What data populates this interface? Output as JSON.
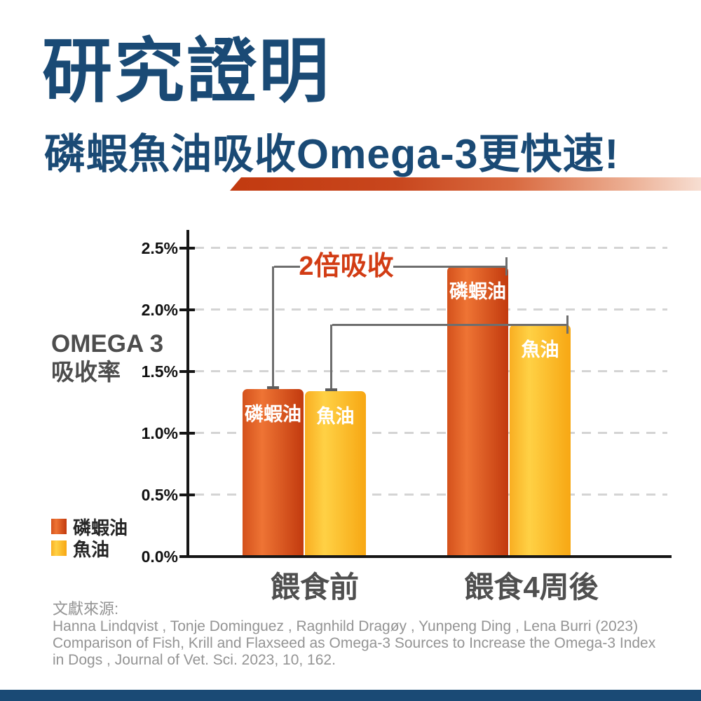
{
  "header": {
    "title": "研究證明",
    "subtitle": "磷蝦魚油吸收Omega-3更快速!"
  },
  "chart_data": {
    "type": "bar",
    "title": "",
    "ylabel_lines": [
      "OMEGA 3",
      "吸收率"
    ],
    "ylabel": "OMEGA 3 吸收率",
    "unit": "%",
    "ylim": [
      0,
      2.5
    ],
    "yticks": [
      0,
      0.5,
      1.0,
      1.5,
      2.0,
      2.5
    ],
    "ytick_labels": [
      "0.0%",
      "0.5%",
      "1.0%",
      "1.5%",
      "2.0%",
      "2.5%"
    ],
    "categories": [
      "餵食前",
      "餵食4周後"
    ],
    "series": [
      {
        "name": "磷蝦油",
        "values": [
          1.36,
          2.35
        ],
        "gradient": [
          "#d4511c",
          "#ee7434",
          "#c23a0e"
        ]
      },
      {
        "name": "魚油",
        "values": [
          1.34,
          1.88
        ],
        "gradient": [
          "#f9ae22",
          "#ffd145",
          "#f7a713"
        ]
      }
    ],
    "annotation": {
      "text": "2倍吸收",
      "color": "#d23c14"
    },
    "grid": "horizontal-dashed",
    "legend_position": "bottom-left"
  },
  "citation": {
    "heading": "文獻來源:",
    "lines": [
      "Hanna Lindqvist , Tonje Dominguez , Ragnhild Dragøy , Yunpeng Ding , Lena Burri (2023)",
      "Comparison of Fish, Krill and Flaxseed as Omega-3 Sources to Increase the Omega-3 Index",
      "in Dogs , Journal of Vet. Sci. 2023, 10, 162."
    ]
  },
  "colors": {
    "navy": "#1a4a75",
    "accent_red": "#d23c14",
    "axis": "#161616",
    "gridline": "#d4d4d4",
    "bracket": "#6e6e6e",
    "label_gray": "#4f4f4f",
    "citation_gray": "#949494"
  }
}
